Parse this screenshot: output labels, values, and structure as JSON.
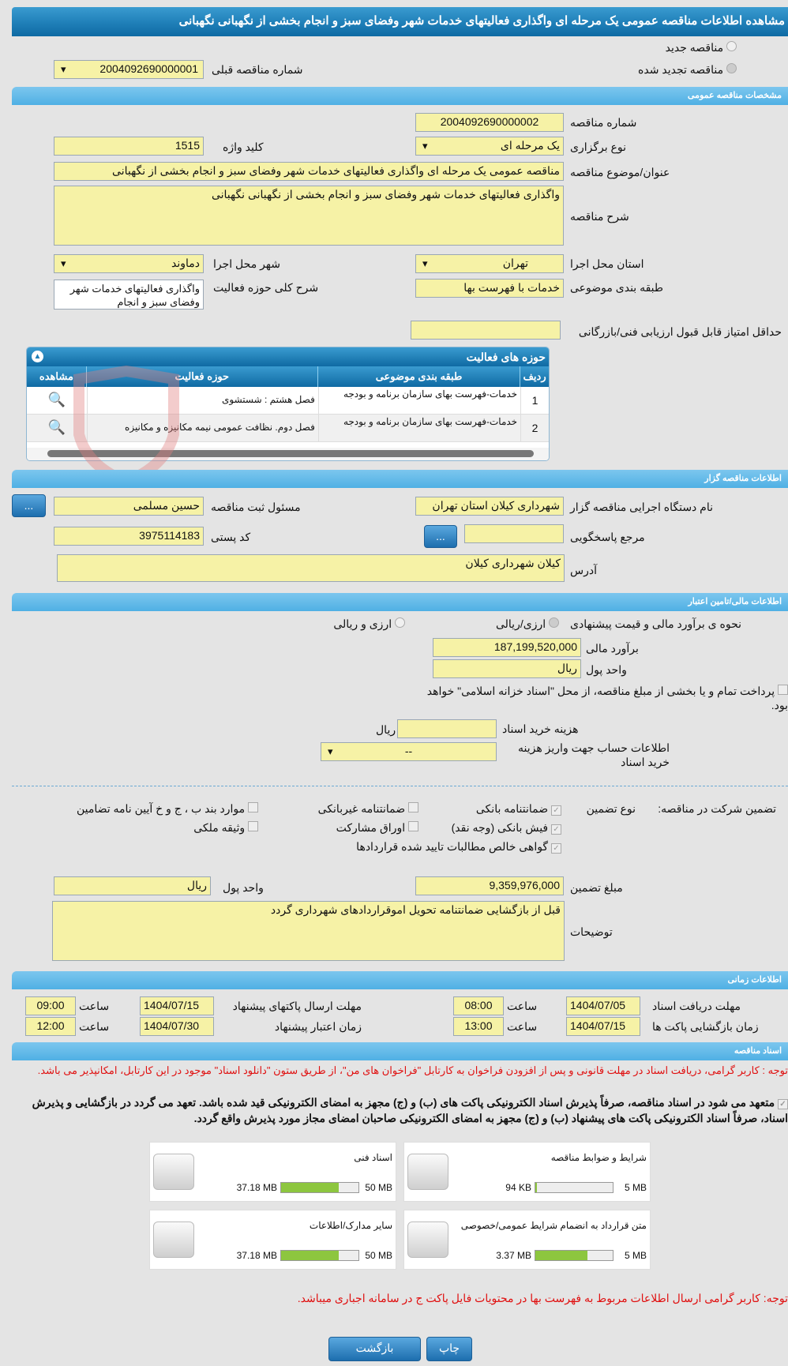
{
  "title": "مشاهده اطلاعات مناقصه عمومی یک مرحله ای واگذاری فعالیتهای خدمات شهر وفضای سبز و انجام بخشی از نگهبانی نگهبانی",
  "radios": {
    "new": "مناقصه جدید",
    "renewed": "مناقصه تجدید شده",
    "selected": "renewed"
  },
  "prev_number": {
    "label": "شماره مناقصه قبلی",
    "value": "2004092690000001"
  },
  "sections": {
    "general": "مشخصات مناقصه عمومی",
    "organizer": "اطلاعات مناقصه گزار",
    "finance": "اطلاعات مالی/تامین اعتبار",
    "time": "اطلاعات زمانی",
    "docs": "اسناد مناقصه"
  },
  "general": {
    "number_label": "شماره مناقصه",
    "number": "2004092690000002",
    "type_label": "نوع برگزاری",
    "type": "یک مرحله ای",
    "keyword_label": "کلید واژه",
    "keyword": "1515",
    "subject_label": "عنوان/موضوع مناقصه",
    "subject": "مناقصه عمومی یک مرحله ای واگذاری فعالیتهای خدمات شهر وفضای سبز و انجام بخشی از نگهبانی",
    "desc_label": "شرح مناقصه",
    "desc": "واگذاری فعالیتهای خدمات شهر وفضای سبز و انجام بخشی از نگهبانی نگهبانی",
    "province_label": "استان محل اجرا",
    "province": "تهران",
    "city_label": "شهر محل اجرا",
    "city": "دماوند",
    "category_label": "طبقه بندی موضوعی",
    "category": "خدمات با فهرست بها",
    "activity_desc_label": "شرح کلی حوزه فعالیت",
    "activity_desc": "واگذاری فعالیتهای خدمات شهر وفضای سبز و انجام",
    "min_score_label": "حداقل امتیاز قابل قبول ارزیابی فنی/بازرگانی",
    "min_score": ""
  },
  "activities": {
    "title": "حوزه های فعالیت",
    "headers": [
      "ردیف",
      "طبقه بندی موضوعی",
      "حوزه فعالیت",
      "مشاهده"
    ],
    "rows": [
      [
        "1",
        "خدمات-فهرست بهای سازمان برنامه و بودجه",
        "فصل هشتم : شستشوی"
      ],
      [
        "2",
        "خدمات-فهرست بهای سازمان برنامه و بودجه",
        "فصل دوم. نظافت عمومی نیمه مکانیزه و مکانیزه"
      ]
    ]
  },
  "organizer": {
    "org_label": "نام دستگاه اجرایی مناقصه گزار",
    "org": "شهرداری کیلان استان تهران",
    "resp_label": "مسئول ثبت مناقصه",
    "resp": "حسین مسلمی",
    "ref_label": "مرجع پاسخگویی",
    "ref": "",
    "postal_label": "کد پستی",
    "postal": "3975114183",
    "address_label": "آدرس",
    "address": "کیلان شهرداری کیلان",
    "more": "..."
  },
  "finance": {
    "method_label": "نحوه ی برآورد مالی و قیمت پیشنهادی",
    "opt1": "ارزی/ریالی",
    "opt2": "ارزی و ریالی",
    "estimate_label": "برآورد مالی",
    "estimate": "187,199,520,000",
    "currency_label": "واحد پول",
    "currency": "ریال",
    "treasury": "پرداخت تمام و یا بخشی از مبلغ مناقصه، از محل \"اسناد خزانه اسلامی\" خواهد بود.",
    "doc_fee_label": "هزینه خرید اسناد",
    "doc_fee": "",
    "doc_fee_unit": "ریال",
    "account_label": "اطلاعات حساب جهت واریز هزینه خرید اسناد",
    "account": "--"
  },
  "guarantee": {
    "label": "تضمین شرکت در مناقصه:",
    "type_label": "نوع تضمین",
    "items": [
      {
        "t": "ضمانتنامه بانکی",
        "c": true
      },
      {
        "t": "ضمانتنامه غیربانکی",
        "c": false
      },
      {
        "t": "موارد بند ب ، ج و خ آیین نامه تضامین",
        "c": false
      },
      {
        "t": "فیش بانکی (وجه نقد)",
        "c": true
      },
      {
        "t": "اوراق مشارکت",
        "c": false
      },
      {
        "t": "وثیقه ملکی",
        "c": false
      },
      {
        "t": "گواهی خالص مطالبات تایید شده قراردادها",
        "c": true
      }
    ],
    "amount_label": "مبلغ تضمین",
    "amount": "9,359,976,000",
    "currency_label": "واحد پول",
    "currency": "ریال",
    "notes_label": "توضیحات",
    "notes": "قبل از بازگشایی ضمانتنامه تحویل اموقراردادهای شهرداری گردد"
  },
  "time": {
    "doc_deadline_label": "مهلت دریافت اسناد",
    "doc_deadline": "1404/07/05",
    "doc_time": "08:00",
    "send_label": "مهلت ارسال پاکتهای پیشنهاد",
    "send": "1404/07/15",
    "send_time": "09:00",
    "open_label": "زمان بازگشایی پاکت ها",
    "open": "1404/07/15",
    "open_time": "13:00",
    "valid_label": "زمان اعتبار پیشنهاد",
    "valid": "1404/07/30",
    "valid_time": "12:00",
    "hour": "ساعت"
  },
  "docs": {
    "note": "توجه : کاربر گرامی، دریافت اسناد در مهلت قانونی و پس از افزودن فراخوان به کارتابل \"فراخوان های من\"، از طریق ستون \"دانلود اسناد\" موجود در این کارتابل، امکانپذیر می باشد.",
    "commit": "متعهد می شود در اسناد مناقصه، صرفاً پذیرش اسناد الکترونیکی پاکت های (ب) و (ج) مجهز به امضای الکترونیکی قید شده باشد. تعهد می گردد در بازگشایی و پذیرش اسناد، صرفاً اسناد الکترونیکی پاکت های پیشنهاد (ب) و (ج) مجهز به امضای الکترونیکی صاحبان امضای مجاز مورد پذیرش واقع گردد.",
    "files": [
      {
        "name": "شرایط و ضوابط مناقصه",
        "size": "94 KB",
        "max": "5 MB",
        "pct": 2
      },
      {
        "name": "اسناد فنی",
        "size": "37.18 MB",
        "max": "50 MB",
        "pct": 74
      },
      {
        "name": "متن قرارداد به انضمام شرایط عمومی/خصوصی",
        "size": "3.37 MB",
        "max": "5 MB",
        "pct": 67
      },
      {
        "name": "سایر مدارک/اطلاعات",
        "size": "37.18 MB",
        "max": "50 MB",
        "pct": 74
      }
    ],
    "footer_note": "توجه: کاربر گرامی ارسال اطلاعات مربوط به فهرست بها در محتویات فایل پاکت ج در سامانه اجباری میباشد."
  },
  "buttons": {
    "back": "بازگشت",
    "print": "چاپ"
  },
  "watermark": "AriaTender.net"
}
